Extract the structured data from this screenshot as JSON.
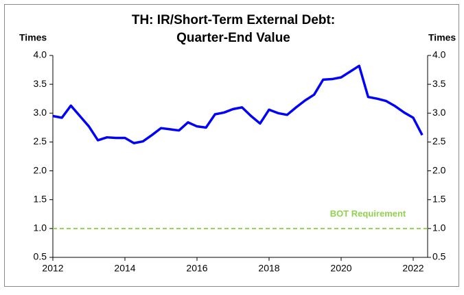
{
  "chart_data": {
    "type": "line",
    "title": [
      "TH: IR/Short-Term External Debt:",
      "Quarter-End Value"
    ],
    "y_label": "Times",
    "y2_label": "Times",
    "x": [
      2012,
      2012.25,
      2012.5,
      2012.75,
      2013,
      2013.25,
      2013.5,
      2013.75,
      2014,
      2014.25,
      2014.5,
      2014.75,
      2015,
      2015.25,
      2015.5,
      2015.75,
      2016,
      2016.25,
      2016.5,
      2016.75,
      2017,
      2017.25,
      2017.5,
      2017.75,
      2018,
      2018.25,
      2018.5,
      2018.75,
      2019,
      2019.25,
      2019.5,
      2019.75,
      2020,
      2020.25,
      2020.5,
      2020.75,
      2021,
      2021.25,
      2021.5,
      2021.75,
      2022,
      2022.25
    ],
    "series": [
      {
        "color": "#0000ff",
        "values": [
          2.95,
          2.92,
          3.13,
          2.95,
          2.77,
          2.53,
          2.58,
          2.57,
          2.57,
          2.48,
          2.51,
          2.62,
          2.74,
          2.72,
          2.7,
          2.84,
          2.77,
          2.75,
          2.98,
          3.01,
          3.07,
          3.1,
          2.95,
          2.82,
          3.06,
          3.0,
          2.97,
          3.1,
          3.22,
          3.32,
          3.58,
          3.59,
          3.62,
          3.72,
          3.82,
          3.28,
          3.25,
          3.21,
          3.12,
          3.01,
          2.92,
          2.62
        ]
      }
    ],
    "reference_line": {
      "label": "BOT Requirement",
      "value": 1,
      "color": "#92d050"
    },
    "xlim": [
      2012,
      2022.4
    ],
    "xticks": [
      2012,
      2014,
      2016,
      2018,
      2020,
      2022
    ],
    "ylim": [
      0.5,
      4
    ],
    "yticks": [
      {
        "value": 0.5,
        "label": "0.5"
      },
      {
        "value": 1,
        "label": "1.0"
      },
      {
        "value": 1.5,
        "label": "1.5"
      },
      {
        "value": 2,
        "label": "2.0"
      },
      {
        "value": 2.5,
        "label": "2.5"
      },
      {
        "value": 3,
        "label": "3.0"
      },
      {
        "value": 3.5,
        "label": "3.5"
      },
      {
        "value": 4,
        "label": "4.0"
      }
    ],
    "y2lim": [
      0.5,
      4
    ],
    "y2ticks": [
      {
        "value": 0.5,
        "label": "0.5"
      },
      {
        "value": 1,
        "label": "1.0"
      },
      {
        "value": 1.5,
        "label": "1.5"
      },
      {
        "value": 2,
        "label": "2.0"
      },
      {
        "value": 2.5,
        "label": "2.5"
      },
      {
        "value": 3,
        "label": "3.0"
      },
      {
        "value": 3.5,
        "label": "3.5"
      },
      {
        "value": 4,
        "label": "4.0"
      }
    ]
  }
}
